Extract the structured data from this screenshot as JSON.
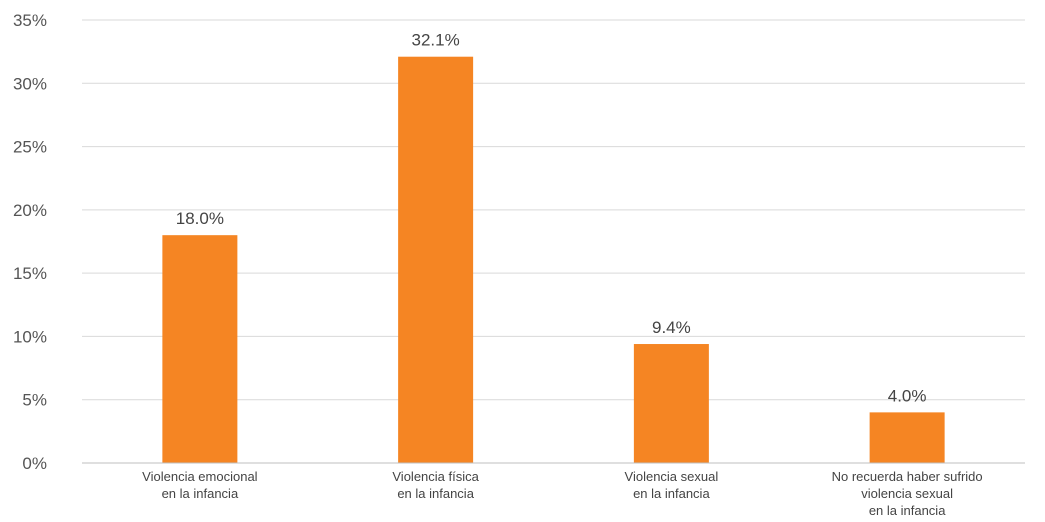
{
  "chart_data": {
    "type": "bar",
    "title": "",
    "xlabel": "",
    "ylabel": "",
    "categories": [
      [
        "Violencia emocional",
        "en la infancia"
      ],
      [
        "Violencia física",
        "en la infancia"
      ],
      [
        "Violencia sexual",
        "en la infancia"
      ],
      [
        "No recuerda haber sufrido",
        "violencia sexual",
        "en la infancia"
      ]
    ],
    "values": [
      18.0,
      32.1,
      9.4,
      4.0
    ],
    "value_labels": [
      "18.0%",
      "32.1%",
      "9.4%",
      "4.0%"
    ],
    "ylim": [
      0,
      35
    ],
    "y_ticks": [
      0,
      5,
      10,
      15,
      20,
      25,
      30,
      35
    ],
    "y_tick_labels": [
      "0%",
      "5%",
      "10%",
      "15%",
      "20%",
      "25%",
      "30%",
      "35%"
    ],
    "grid": true,
    "legend": "none",
    "colors": {
      "bar": "#F58523",
      "grid": "#D9D9D9",
      "axis": "#BFBFBF"
    }
  }
}
